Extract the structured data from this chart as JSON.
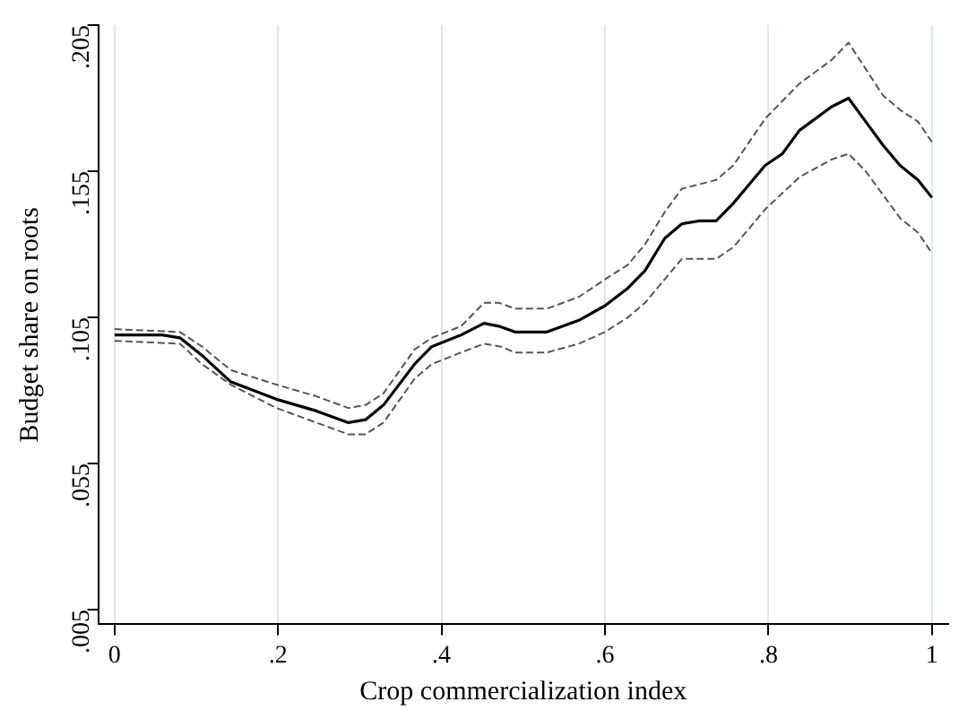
{
  "chart_data": {
    "type": "line",
    "xlabel": "Crop commercialization index",
    "ylabel": "Budget share on roots",
    "xlim": [
      -0.02,
      1.02
    ],
    "ylim": [
      0,
      0.205
    ],
    "xticks": [
      0,
      {
        "value": 0.2,
        "label": ".2"
      },
      {
        "value": 0.4,
        "label": ".4"
      },
      {
        "value": 0.6,
        "label": ".6"
      },
      {
        "value": 0.8,
        "label": ".8"
      },
      1
    ],
    "yticks": [
      {
        "value": 0.005,
        "label": ".005"
      },
      {
        "value": 0.055,
        "label": ".055"
      },
      {
        "value": 0.105,
        "label": ".105"
      },
      {
        "value": 0.155,
        "label": ".155"
      },
      {
        "value": 0.205,
        "label": ".205"
      }
    ],
    "grid": "x",
    "marker": "none",
    "series": [
      {
        "color": "#555555",
        "line_style": "dashed",
        "x": [
          0,
          0.08,
          0.107,
          0.142,
          0.198,
          0.247,
          0.286,
          0.307,
          0.329,
          0.367,
          0.388,
          0.424,
          0.452,
          0.47,
          0.49,
          0.529,
          0.568,
          0.6,
          0.628,
          0.649,
          0.673,
          0.694,
          0.736,
          0.757,
          0.796,
          0.838,
          0.877,
          0.898,
          0.919,
          0.94,
          0.961,
          0.983,
          1
        ],
        "values": [
          0.101,
          0.1,
          0.095,
          0.087,
          0.082,
          0.078,
          0.074,
          0.075,
          0.079,
          0.094,
          0.098,
          0.102,
          0.11,
          0.11,
          0.108,
          0.108,
          0.112,
          0.118,
          0.123,
          0.13,
          0.141,
          0.149,
          0.152,
          0.157,
          0.173,
          0.185,
          0.193,
          0.199,
          0.19,
          0.181,
          0.176,
          0.172,
          0.165
        ]
      },
      {
        "color": "#000000",
        "line_style": "solid",
        "x": [
          0,
          0.058,
          0.08,
          0.107,
          0.142,
          0.198,
          0.247,
          0.286,
          0.307,
          0.329,
          0.367,
          0.388,
          0.424,
          0.452,
          0.47,
          0.49,
          0.529,
          0.568,
          0.6,
          0.628,
          0.649,
          0.673,
          0.694,
          0.715,
          0.736,
          0.757,
          0.778,
          0.796,
          0.817,
          0.838,
          0.877,
          0.898,
          0.919,
          0.94,
          0.961,
          0.983,
          1
        ],
        "values": [
          0.099,
          0.099,
          0.098,
          0.092,
          0.083,
          0.077,
          0.073,
          0.069,
          0.07,
          0.075,
          0.089,
          0.095,
          0.099,
          0.103,
          0.102,
          0.1,
          0.1,
          0.104,
          0.109,
          0.115,
          0.121,
          0.132,
          0.137,
          0.138,
          0.138,
          0.144,
          0.151,
          0.157,
          0.161,
          0.169,
          0.177,
          0.18,
          0.172,
          0.164,
          0.157,
          0.152,
          0.146
        ]
      },
      {
        "color": "#555555",
        "line_style": "dashed",
        "x": [
          0,
          0.08,
          0.107,
          0.142,
          0.198,
          0.247,
          0.286,
          0.307,
          0.329,
          0.367,
          0.388,
          0.424,
          0.452,
          0.473,
          0.49,
          0.529,
          0.568,
          0.6,
          0.628,
          0.649,
          0.673,
          0.694,
          0.736,
          0.757,
          0.796,
          0.838,
          0.877,
          0.898,
          0.919,
          0.94,
          0.961,
          0.983,
          1
        ],
        "values": [
          0.097,
          0.096,
          0.089,
          0.082,
          0.074,
          0.069,
          0.065,
          0.065,
          0.069,
          0.084,
          0.089,
          0.093,
          0.096,
          0.095,
          0.093,
          0.093,
          0.096,
          0.1,
          0.105,
          0.11,
          0.118,
          0.125,
          0.125,
          0.129,
          0.142,
          0.153,
          0.159,
          0.161,
          0.155,
          0.147,
          0.139,
          0.134,
          0.127
        ]
      }
    ]
  }
}
